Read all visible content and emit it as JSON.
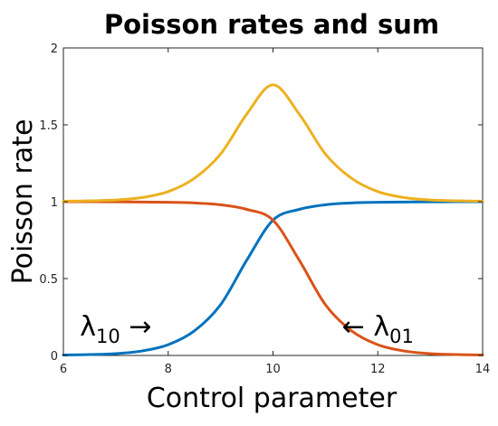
{
  "chart_data": {
    "type": "line",
    "title": "Poisson rates and sum",
    "xlabel": "Control parameter",
    "ylabel": "Poisson rate",
    "xlim": [
      6,
      14
    ],
    "ylim": [
      0,
      2
    ],
    "xticks": [
      6,
      8,
      10,
      12,
      14
    ],
    "yticks": [
      0,
      0.5,
      1,
      1.5,
      2
    ],
    "xtick_labels": [
      "6",
      "8",
      "10",
      "12",
      "14"
    ],
    "ytick_labels": [
      "0",
      "0.5",
      "1",
      "1.5",
      "2"
    ],
    "grid": false,
    "x": [
      6,
      6.5,
      7,
      7.5,
      8,
      8.5,
      9,
      9.5,
      10,
      10.5,
      11,
      11.5,
      12,
      12.5,
      13,
      13.5,
      14
    ],
    "series": [
      {
        "name": "",
        "color": "#0072BD",
        "values": [
          0.003,
          0.006,
          0.012,
          0.029,
          0.07,
          0.16,
          0.33,
          0.62,
          0.88,
          0.95,
          0.98,
          0.992,
          0.996,
          0.998,
          0.999,
          1.0,
          1.0
        ]
      },
      {
        "name": "",
        "color": "#D95319",
        "values": [
          1.0,
          1.0,
          0.999,
          0.998,
          0.996,
          0.992,
          0.98,
          0.95,
          0.88,
          0.62,
          0.33,
          0.16,
          0.07,
          0.029,
          0.012,
          0.006,
          0.003
        ]
      },
      {
        "name": "",
        "color": "#EDB120",
        "values": [
          1.003,
          1.006,
          1.011,
          1.027,
          1.066,
          1.152,
          1.31,
          1.57,
          1.76,
          1.57,
          1.31,
          1.152,
          1.066,
          1.027,
          1.011,
          1.006,
          1.003
        ]
      }
    ],
    "annotations": [
      {
        "symbol": "λ",
        "subscript": "10",
        "arrow": "→",
        "x": 7.0,
        "y": 0.13
      },
      {
        "symbol": "λ",
        "subscript": "01",
        "arrow": "←",
        "x": 12.0,
        "y": 0.13
      }
    ]
  }
}
